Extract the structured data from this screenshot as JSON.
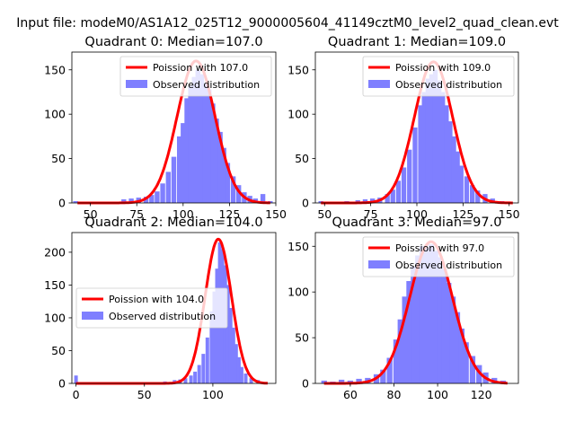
{
  "figure": {
    "suptitle": "Input file: modeM0/AS1A12_025T12_9000005604_41149cztM0_level2_quad_clean.evt"
  },
  "colors": {
    "poisson": "#ff0000",
    "observed": "#7f7fff",
    "axis": "#000000"
  },
  "chart_data": [
    {
      "type": "bar",
      "title": "Quadrant 0: Median=107.0",
      "xlim": [
        40,
        150
      ],
      "ylim": [
        0,
        170
      ],
      "xticks": [
        50,
        75,
        100,
        125,
        150
      ],
      "yticks": [
        0,
        50,
        100,
        150
      ],
      "legend_position": "upper right",
      "legend": [
        "Poission with 107.0",
        "Observed distribution"
      ],
      "median": 107,
      "bins": [
        [
          42,
          2
        ],
        [
          48,
          1
        ],
        [
          55,
          1
        ],
        [
          62,
          1
        ],
        [
          68,
          4
        ],
        [
          72,
          5
        ],
        [
          76,
          6
        ],
        [
          80,
          7
        ],
        [
          83,
          9
        ],
        [
          86,
          13
        ],
        [
          89,
          22
        ],
        [
          92,
          35
        ],
        [
          95,
          52
        ],
        [
          98,
          75
        ],
        [
          100,
          90
        ],
        [
          102,
          118
        ],
        [
          104,
          132
        ],
        [
          106,
          142
        ],
        [
          108,
          150
        ],
        [
          110,
          145
        ],
        [
          112,
          135
        ],
        [
          114,
          128
        ],
        [
          116,
          112
        ],
        [
          118,
          95
        ],
        [
          120,
          80
        ],
        [
          122,
          62
        ],
        [
          124,
          45
        ],
        [
          127,
          30
        ],
        [
          130,
          20
        ],
        [
          133,
          12
        ],
        [
          136,
          8
        ],
        [
          139,
          5
        ],
        [
          143,
          10
        ],
        [
          147,
          2
        ]
      ],
      "curve": {
        "mean": 107,
        "sigma": 10.3,
        "peak": 160,
        "x_start": 43,
        "x_end": 147
      }
    },
    {
      "type": "bar",
      "title": "Quadrant 1: Median=109.0",
      "xlim": [
        45,
        155
      ],
      "ylim": [
        0,
        170
      ],
      "xticks": [
        50,
        75,
        100,
        125,
        150
      ],
      "yticks": [
        0,
        50,
        100,
        150
      ],
      "legend_position": "upper right",
      "legend": [
        "Poission with 109.0",
        "Observed distribution"
      ],
      "median": 109,
      "bins": [
        [
          48,
          2
        ],
        [
          56,
          1
        ],
        [
          62,
          2
        ],
        [
          68,
          3
        ],
        [
          72,
          4
        ],
        [
          76,
          5
        ],
        [
          80,
          6
        ],
        [
          84,
          10
        ],
        [
          87,
          15
        ],
        [
          90,
          25
        ],
        [
          93,
          40
        ],
        [
          96,
          60
        ],
        [
          99,
          85
        ],
        [
          102,
          110
        ],
        [
          104,
          125
        ],
        [
          106,
          140
        ],
        [
          108,
          145
        ],
        [
          110,
          150
        ],
        [
          112,
          138
        ],
        [
          114,
          125
        ],
        [
          116,
          110
        ],
        [
          118,
          92
        ],
        [
          120,
          75
        ],
        [
          122,
          58
        ],
        [
          124,
          42
        ],
        [
          127,
          30
        ],
        [
          130,
          20
        ],
        [
          133,
          14
        ],
        [
          137,
          10
        ],
        [
          141,
          5
        ],
        [
          146,
          2
        ]
      ],
      "curve": {
        "mean": 109,
        "sigma": 10.4,
        "peak": 159,
        "x_start": 48,
        "x_end": 152
      }
    },
    {
      "type": "bar",
      "title": "Quadrant 2: Median=104.0",
      "xlim": [
        -3,
        146
      ],
      "ylim": [
        0,
        230
      ],
      "xticks": [
        0,
        50,
        100
      ],
      "yticks": [
        0,
        50,
        100,
        150,
        200
      ],
      "legend_position": "center left",
      "legend": [
        "Poission with 104.0",
        "Observed distribution"
      ],
      "median": 104,
      "bins": [
        [
          0,
          12
        ],
        [
          5,
          2
        ],
        [
          30,
          1
        ],
        [
          55,
          2
        ],
        [
          65,
          3
        ],
        [
          72,
          5
        ],
        [
          76,
          6
        ],
        [
          80,
          8
        ],
        [
          84,
          12
        ],
        [
          87,
          18
        ],
        [
          90,
          28
        ],
        [
          93,
          45
        ],
        [
          96,
          70
        ],
        [
          99,
          110
        ],
        [
          101,
          140
        ],
        [
          103,
          175
        ],
        [
          105,
          215
        ],
        [
          107,
          205
        ],
        [
          109,
          180
        ],
        [
          111,
          150
        ],
        [
          113,
          115
        ],
        [
          115,
          85
        ],
        [
          117,
          60
        ],
        [
          119,
          40
        ],
        [
          121,
          25
        ],
        [
          124,
          15
        ],
        [
          128,
          8
        ],
        [
          133,
          5
        ],
        [
          138,
          2
        ]
      ],
      "curve": {
        "mean": 104,
        "sigma": 9.6,
        "peak": 220,
        "x_start": 0,
        "x_end": 140
      }
    },
    {
      "type": "bar",
      "title": "Quadrant 3: Median=97.0",
      "xlim": [
        44,
        137
      ],
      "ylim": [
        0,
        165
      ],
      "xticks": [
        60,
        80,
        100,
        120
      ],
      "yticks": [
        0,
        50,
        100,
        150
      ],
      "legend_position": "upper right",
      "legend": [
        "Poission with 97.0",
        "Observed distribution"
      ],
      "median": 97,
      "bins": [
        [
          48,
          3
        ],
        [
          52,
          2
        ],
        [
          56,
          4
        ],
        [
          60,
          3
        ],
        [
          64,
          5
        ],
        [
          68,
          6
        ],
        [
          72,
          10
        ],
        [
          75,
          15
        ],
        [
          78,
          28
        ],
        [
          81,
          48
        ],
        [
          83,
          70
        ],
        [
          85,
          95
        ],
        [
          87,
          112
        ],
        [
          89,
          128
        ],
        [
          91,
          140
        ],
        [
          93,
          150
        ],
        [
          95,
          148
        ],
        [
          97,
          152
        ],
        [
          99,
          145
        ],
        [
          101,
          138
        ],
        [
          103,
          125
        ],
        [
          105,
          110
        ],
        [
          107,
          95
        ],
        [
          109,
          78
        ],
        [
          111,
          60
        ],
        [
          113,
          45
        ],
        [
          116,
          30
        ],
        [
          119,
          20
        ],
        [
          122,
          12
        ],
        [
          126,
          6
        ],
        [
          130,
          3
        ]
      ],
      "curve": {
        "mean": 97,
        "sigma": 9.8,
        "peak": 155,
        "x_start": 48,
        "x_end": 132
      }
    }
  ]
}
